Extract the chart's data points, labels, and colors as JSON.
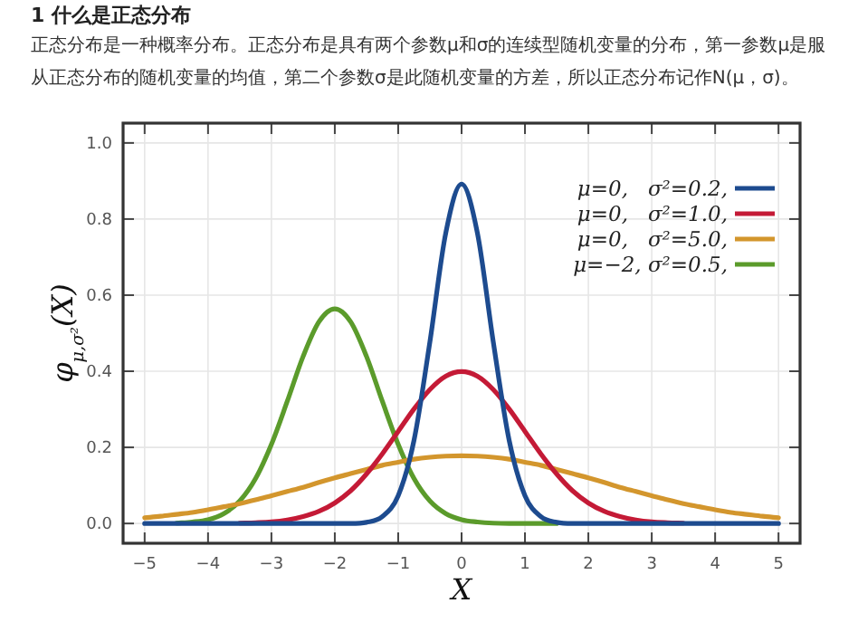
{
  "chart_data": {
    "type": "line",
    "title": "1 什么是正态分布",
    "subtitle": "正态分布是一种概率分布。正态分布是具有两个参数μ和σ的连续型随机变量的分布，第一参数μ是服从正态分布的随机变量的均值，第二个参数σ是此随机变量的方差，所以正态分布记作N(μ，σ)。",
    "xlabel": "X",
    "ylabel": "φ$_{μ,σ²}$(X)",
    "x": [
      -5,
      -4.75,
      -4.5,
      -4.25,
      -4,
      -3.75,
      -3.5,
      -3.25,
      -3,
      -2.75,
      -2.5,
      -2.25,
      -2,
      -1.75,
      -1.5,
      -1.25,
      -1,
      -0.75,
      -0.5,
      -0.25,
      0,
      0.25,
      0.5,
      0.75,
      1,
      1.25,
      1.5,
      1.75,
      2,
      2.25,
      2.5,
      2.75,
      3,
      3.25,
      3.5,
      3.75,
      4,
      4.25,
      4.5,
      4.75,
      5
    ],
    "series": [
      {
        "name": "μ=0,   σ²=0.2,",
        "color": "#1d4b8f",
        "values": [
          0,
          0,
          0,
          0,
          0,
          0,
          0,
          0,
          0,
          0,
          0,
          0,
          0,
          0,
          0.003,
          0.018,
          0.073,
          0.219,
          0.477,
          0.763,
          0.892,
          0.763,
          0.477,
          0.219,
          0.073,
          0.018,
          0.003,
          0,
          0,
          0,
          0,
          0,
          0,
          0,
          0,
          0,
          0,
          0,
          0,
          0,
          0
        ]
      },
      {
        "name": "μ=0,   σ²=1.0,",
        "color": "#c41a36",
        "values": [
          null,
          null,
          null,
          null,
          null,
          null,
          0.001,
          0.002,
          0.004,
          0.009,
          0.018,
          0.032,
          0.054,
          0.086,
          0.13,
          0.183,
          0.242,
          0.301,
          0.352,
          0.387,
          0.399,
          0.387,
          0.352,
          0.301,
          0.242,
          0.183,
          0.13,
          0.086,
          0.054,
          0.032,
          0.018,
          0.009,
          0.004,
          0.002,
          0.001,
          null,
          null,
          null,
          null,
          null,
          null
        ]
      },
      {
        "name": "μ=0,   σ²=5.0,",
        "color": "#d3962d",
        "values": [
          0.015,
          0.019,
          0.024,
          0.029,
          0.036,
          0.044,
          0.052,
          0.062,
          0.073,
          0.084,
          0.095,
          0.108,
          0.12,
          0.131,
          0.142,
          0.153,
          0.161,
          0.169,
          0.174,
          0.177,
          0.178,
          0.177,
          0.174,
          0.169,
          0.161,
          0.153,
          0.142,
          0.131,
          0.12,
          0.108,
          0.095,
          0.084,
          0.073,
          0.062,
          0.052,
          0.044,
          0.036,
          0.029,
          0.024,
          0.019,
          0.015
        ]
      },
      {
        "name": "μ=−2, σ²=0.5,",
        "color": "#5b9b2b",
        "values": [
          null,
          null,
          0.001,
          0.004,
          0.01,
          0.026,
          0.059,
          0.118,
          0.208,
          0.321,
          0.439,
          0.53,
          0.564,
          0.53,
          0.439,
          0.321,
          0.208,
          0.118,
          0.059,
          0.026,
          0.01,
          0.004,
          0.001,
          0,
          0,
          0,
          0,
          null,
          null,
          null,
          null,
          null,
          null,
          null,
          null,
          null,
          null,
          null,
          null,
          null,
          null
        ]
      }
    ],
    "xlim": [
      -5.34,
      5.34
    ],
    "ylim": [
      -0.052,
      1.052
    ],
    "xticks": [
      -5,
      -4,
      -3,
      -2,
      -1,
      0,
      1,
      2,
      3,
      4,
      5
    ],
    "yticks": [
      {
        "value": 0,
        "label": "0.0"
      },
      {
        "value": 0.2,
        "label": "0.2"
      },
      {
        "value": 0.4,
        "label": "0.4"
      },
      {
        "value": 0.6,
        "label": "0.6"
      },
      {
        "value": 0.8,
        "label": "0.8"
      },
      {
        "value": 1,
        "label": "1.0"
      }
    ],
    "grid": true,
    "legend": "top right",
    "marker": "none",
    "line_style": "solid"
  }
}
